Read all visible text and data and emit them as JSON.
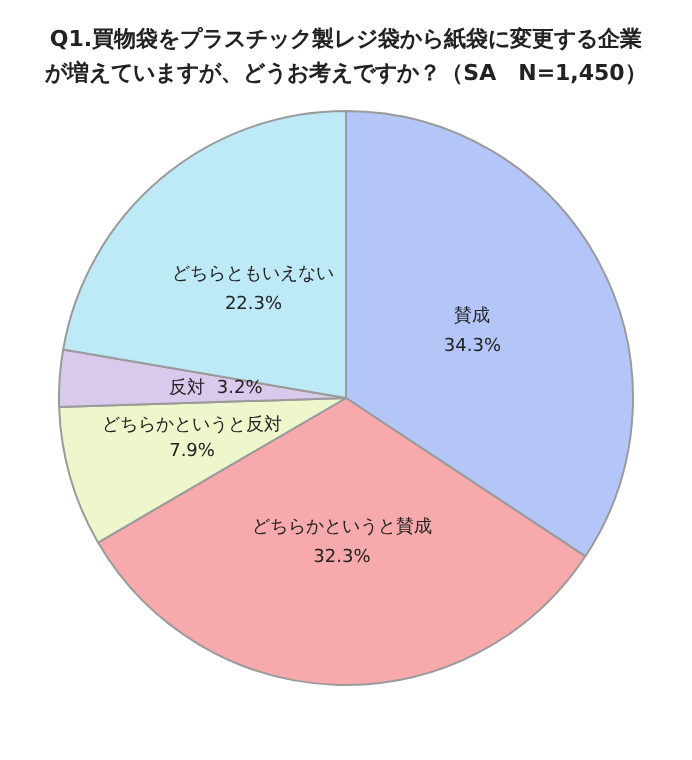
{
  "chart_data": {
    "type": "pie",
    "title": "Q1.買物袋をプラスチック製レジ袋から紙袋に変更する企業が増えていますが、どうお考えですか？（SA　N=1,450）",
    "categories": [
      "賛成",
      "どちらかというと賛成",
      "どちらかというと反対",
      "反対",
      "どちらともいえない"
    ],
    "values": [
      34.3,
      32.3,
      7.9,
      3.2,
      22.3
    ],
    "value_labels": [
      "34.3%",
      "32.3%",
      "7.9%",
      "3.2%",
      "22.3%"
    ],
    "colors": [
      "#b4c6f7",
      "#f7a9ab",
      "#eef6cc",
      "#d9c9ec",
      "#bdeaf6"
    ],
    "legend": false
  }
}
